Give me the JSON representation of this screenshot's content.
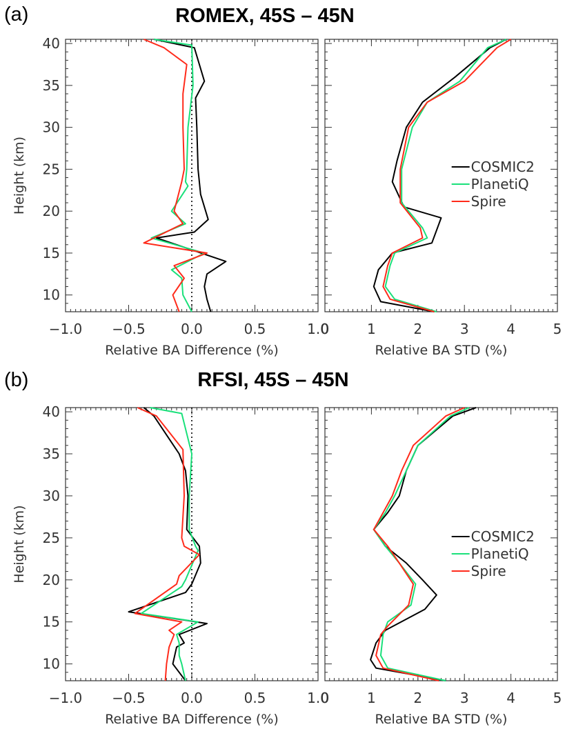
{
  "figure": {
    "panels": [
      {
        "tag": "(a)",
        "title": "ROMEX, 45S – 45N"
      },
      {
        "tag": "(b)",
        "title": "RFSI, 45S – 45N"
      }
    ]
  },
  "chart_data": [
    {
      "type": "line",
      "panel": "(a)",
      "title": "ROMEX, 45S – 45N",
      "xlabel": "Relative BA Difference (%)",
      "ylabel": "Height (km)",
      "xlim": [
        -1.0,
        1.0
      ],
      "ylim": [
        8,
        40.5
      ],
      "xticks": [
        "-1.0",
        "-0.5",
        "0.0",
        "0.5",
        "1.0"
      ],
      "yticks": [
        "10",
        "15",
        "20",
        "25",
        "30",
        "35",
        "40"
      ],
      "reference_line": {
        "x": 0.0,
        "style": "dotted"
      },
      "legend": [],
      "series": [
        {
          "name": "COSMIC2",
          "color": "#000000",
          "x": [
            -0.3,
            0.02,
            0.1,
            0.03,
            0.04,
            0.05,
            0.07,
            0.13,
            0.02,
            -0.28,
            0.27,
            0.12,
            0.1,
            0.12,
            0.15
          ],
          "y": [
            40.5,
            39.5,
            35.5,
            33.5,
            30,
            25,
            22,
            19,
            17.5,
            16.8,
            14,
            12.5,
            11,
            9.5,
            8
          ]
        },
        {
          "name": "PlanetiQ",
          "color": "#19e07a",
          "x": [
            -0.3,
            0.0,
            0.01,
            -0.03,
            -0.04,
            -0.05,
            -0.03,
            -0.16,
            -0.05,
            -0.32,
            0.1,
            -0.16,
            -0.08,
            -0.07,
            0.0
          ],
          "y": [
            40.5,
            39.8,
            35,
            30,
            25,
            23.5,
            23,
            20,
            18.5,
            16.8,
            15,
            13,
            12,
            10,
            8
          ]
        },
        {
          "name": "Spire",
          "color": "#ff2a1a",
          "x": [
            -0.38,
            -0.22,
            -0.04,
            -0.07,
            -0.07,
            -0.06,
            -0.08,
            -0.14,
            -0.07,
            -0.38,
            0.12,
            -0.14,
            -0.06,
            -0.15,
            -0.1
          ],
          "y": [
            40.5,
            39.5,
            37.5,
            34,
            30,
            25,
            23.5,
            20,
            18.5,
            16.2,
            15,
            13.5,
            12,
            10,
            8
          ]
        }
      ]
    },
    {
      "type": "line",
      "panel": "(a)",
      "xlabel": "Relative BA STD (%)",
      "ylabel": "",
      "xlim": [
        0,
        5
      ],
      "ylim": [
        8,
        40.5
      ],
      "xticks": [
        "0",
        "1",
        "2",
        "3",
        "4",
        "5"
      ],
      "yticks": [],
      "legend": [
        "COSMIC2",
        "PlanetiQ",
        "Spire"
      ],
      "legend_position": "right",
      "series": [
        {
          "name": "COSMIC2",
          "color": "#000000",
          "x": [
            3.9,
            3.55,
            2.8,
            2.1,
            1.75,
            1.55,
            1.45,
            1.7,
            2.5,
            2.3,
            1.45,
            1.15,
            1.05,
            1.2,
            2.35
          ],
          "y": [
            40.5,
            39.5,
            36,
            33,
            30,
            26,
            23.5,
            20.5,
            19.2,
            16.2,
            15,
            13,
            11,
            9.2,
            8
          ]
        },
        {
          "name": "PlanetiQ",
          "color": "#19e07a",
          "x": [
            3.9,
            3.5,
            2.9,
            2.2,
            1.88,
            1.65,
            1.65,
            2.1,
            2.2,
            1.5,
            1.4,
            1.3,
            1.5,
            2.4
          ],
          "y": [
            40.5,
            39.5,
            35.5,
            33,
            30,
            25,
            21,
            18,
            16.8,
            15,
            13.5,
            11,
            9.5,
            8
          ]
        },
        {
          "name": "Spire",
          "color": "#ff2a1a",
          "x": [
            4.0,
            3.7,
            3.0,
            2.2,
            1.8,
            1.62,
            1.62,
            2.05,
            2.1,
            1.45,
            1.35,
            1.25,
            1.4,
            2.35
          ],
          "y": [
            40.5,
            39.5,
            35.5,
            33,
            30,
            25,
            21,
            18,
            16.8,
            15,
            13.5,
            11,
            9.5,
            8
          ]
        }
      ]
    },
    {
      "type": "line",
      "panel": "(b)",
      "title": "RFSI, 45S – 45N",
      "xlabel": "Relative BA Difference (%)",
      "ylabel": "Height (km)",
      "xlim": [
        -1.0,
        1.0
      ],
      "ylim": [
        8,
        40.5
      ],
      "xticks": [
        "-1.0",
        "-0.5",
        "0.0",
        "0.5",
        "1.0"
      ],
      "yticks": [
        "10",
        "15",
        "20",
        "25",
        "30",
        "35",
        "40"
      ],
      "reference_line": {
        "x": 0.0,
        "style": "dotted"
      },
      "legend": [],
      "series": [
        {
          "name": "COSMIC2",
          "color": "#000000",
          "x": [
            -0.38,
            -0.3,
            -0.1,
            -0.05,
            -0.03,
            -0.04,
            0.06,
            0.07,
            0.0,
            -0.05,
            -0.5,
            -0.05,
            0.12,
            -0.1,
            -0.06,
            -0.12,
            -0.15,
            -0.05
          ],
          "y": [
            40.5,
            39.5,
            35,
            33,
            30,
            26,
            24,
            22,
            19.5,
            18.5,
            16.2,
            15.2,
            14.8,
            13.5,
            12.5,
            12,
            10,
            8
          ]
        },
        {
          "name": "PlanetiQ",
          "color": "#19e07a",
          "x": [
            -0.33,
            -0.08,
            0.0,
            -0.02,
            -0.02,
            0.03,
            0.05,
            -0.05,
            -0.08,
            -0.4,
            0.05,
            -0.12,
            -0.1,
            -0.1,
            -0.08,
            -0.05
          ],
          "y": [
            40.5,
            39.8,
            35,
            30,
            26,
            24,
            23.5,
            20,
            19.2,
            16,
            15,
            13.5,
            12.5,
            11,
            10,
            8
          ]
        },
        {
          "name": "Spire",
          "color": "#ff2a1a",
          "x": [
            -0.43,
            -0.28,
            -0.07,
            -0.06,
            -0.08,
            -0.06,
            0.06,
            -0.1,
            -0.12,
            -0.45,
            -0.08,
            -0.18,
            -0.14,
            -0.18,
            -0.2,
            -0.21
          ],
          "y": [
            40.5,
            39.5,
            35.5,
            30,
            25,
            24,
            23,
            20.5,
            19.5,
            16,
            15,
            14,
            13.5,
            12,
            10,
            8
          ]
        }
      ]
    },
    {
      "type": "line",
      "panel": "(b)",
      "xlabel": "Relative BA STD (%)",
      "ylabel": "",
      "xlim": [
        0,
        5
      ],
      "ylim": [
        8,
        40.5
      ],
      "xticks": [
        "0",
        "1",
        "2",
        "3",
        "4",
        "5"
      ],
      "yticks": [],
      "legend": [
        "COSMIC2",
        "PlanetiQ",
        "Spire"
      ],
      "legend_position": "right",
      "series": [
        {
          "name": "COSMIC2",
          "color": "#000000",
          "x": [
            3.25,
            2.75,
            2.0,
            1.75,
            1.6,
            1.35,
            1.05,
            1.3,
            1.75,
            2.1,
            2.4,
            2.15,
            1.3,
            1.1,
            0.98,
            1.1,
            2.6
          ],
          "y": [
            40.5,
            39.5,
            36,
            33,
            30,
            28,
            26,
            24,
            22,
            20,
            18.2,
            16.5,
            14,
            12.5,
            10.5,
            9.5,
            8
          ]
        },
        {
          "name": "PlanetiQ",
          "color": "#19e07a",
          "x": [
            3.1,
            2.7,
            2.0,
            1.75,
            1.5,
            1.3,
            1.05,
            1.3,
            1.6,
            1.95,
            1.85,
            1.35,
            1.25,
            1.2,
            1.35,
            2.6
          ],
          "y": [
            40.5,
            39.5,
            36,
            33,
            30,
            28,
            26,
            24,
            22,
            19.5,
            17,
            15,
            13.5,
            11,
            9.5,
            8
          ]
        },
        {
          "name": "Spire",
          "color": "#ff2a1a",
          "x": [
            3.0,
            2.6,
            1.9,
            1.65,
            1.45,
            1.25,
            1.05,
            1.35,
            1.6,
            1.9,
            1.8,
            1.35,
            1.2,
            1.1,
            1.25,
            2.45
          ],
          "y": [
            40.5,
            39.5,
            36,
            33,
            30,
            28,
            26,
            24,
            22,
            19.5,
            17,
            14.5,
            13.5,
            11,
            9.5,
            8
          ]
        }
      ]
    }
  ]
}
